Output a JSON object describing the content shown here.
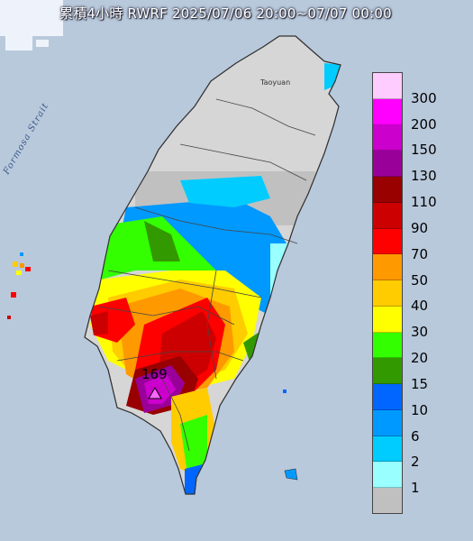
{
  "title": "累積4小時 RWRF 2025/07/06 20:00~07/07 00:00",
  "strait_label": "Formosa Strait",
  "city_label": "Taoyuan",
  "max_value": "169",
  "legend": {
    "levels": [
      {
        "label": "300",
        "color": "#ffccff"
      },
      {
        "label": "200",
        "color": "#ff00ff"
      },
      {
        "label": "150",
        "color": "#cc00cc"
      },
      {
        "label": "130",
        "color": "#990099"
      },
      {
        "label": "110",
        "color": "#990000"
      },
      {
        "label": "90",
        "color": "#cc0000"
      },
      {
        "label": "70",
        "color": "#ff0000"
      },
      {
        "label": "50",
        "color": "#ff9900"
      },
      {
        "label": "40",
        "color": "#ffcc00"
      },
      {
        "label": "30",
        "color": "#ffff00"
      },
      {
        "label": "20",
        "color": "#33ff00"
      },
      {
        "label": "15",
        "color": "#339900"
      },
      {
        "label": "10",
        "color": "#0066ff"
      },
      {
        "label": "6",
        "color": "#0099ff"
      },
      {
        "label": "2",
        "color": "#00ccff"
      },
      {
        "label": "1",
        "color": "#99ffff"
      },
      {
        "label": "",
        "color": "#c0c0c0"
      }
    ]
  }
}
